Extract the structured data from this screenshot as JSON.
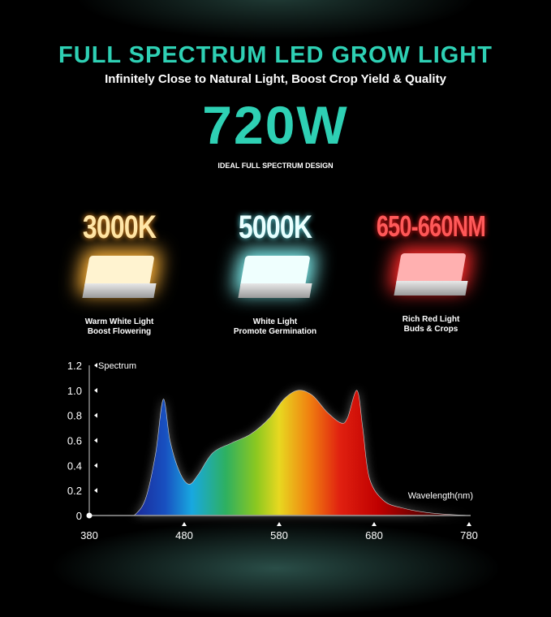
{
  "header": {
    "title": "FULL SPECTRUM LED GROW LIGHT",
    "subtitle": "Infinitely Close to Natural Light, Boost Crop Yield & Quality",
    "wattage": "720W",
    "tagline": "IDEAL FULL SPECTRUM DESIGN"
  },
  "accent_color": "#2ed0b4",
  "leds": [
    {
      "label": "3000K",
      "line1": "Warm White Light",
      "line2": "Boost Flowering",
      "color": "#ffb43a"
    },
    {
      "label": "5000K",
      "line1": "White Light",
      "line2": "Promote Germination",
      "color": "#7ff0f0"
    },
    {
      "label": "650-660NM",
      "line1": "Rich Red Light",
      "line2": "Buds & Crops",
      "color": "#ff2a2a"
    }
  ],
  "chart_data": {
    "type": "area",
    "ylabel": "Spectrum",
    "xlabel": "Wavelength(nm)",
    "xlim": [
      380,
      780
    ],
    "ylim": [
      0,
      1.2
    ],
    "xticks": [
      "380",
      "480",
      "580",
      "680",
      "780"
    ],
    "yticks": [
      "0",
      "0.2",
      "0.4",
      "0.6",
      "0.8",
      "1.0",
      "1.2"
    ],
    "grid": false,
    "x": [
      380,
      420,
      430,
      440,
      450,
      458,
      465,
      475,
      485,
      495,
      510,
      530,
      550,
      570,
      585,
      600,
      615,
      630,
      645,
      652,
      662,
      668,
      675,
      690,
      710,
      740,
      780
    ],
    "y": [
      0,
      0,
      0.02,
      0.15,
      0.5,
      0.93,
      0.6,
      0.35,
      0.25,
      0.33,
      0.5,
      0.58,
      0.65,
      0.78,
      0.93,
      1.0,
      0.96,
      0.83,
      0.74,
      0.78,
      1.0,
      0.7,
      0.3,
      0.12,
      0.06,
      0.02,
      0
    ]
  }
}
